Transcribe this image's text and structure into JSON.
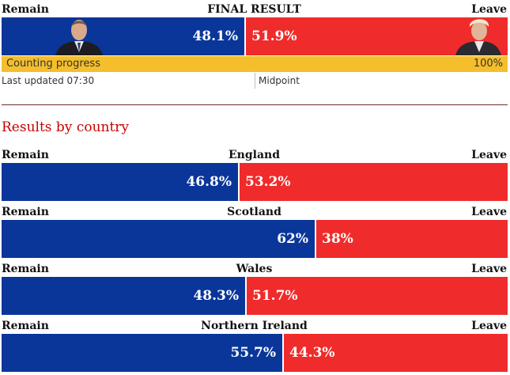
{
  "colors": {
    "remain": "#0a3699",
    "leave": "#f02b2b",
    "progress": "#f5be2c",
    "divider": "#6d2e2e",
    "section_title": "#c70000"
  },
  "final": {
    "title": "FINAL RESULT",
    "remain_label": "Remain",
    "leave_label": "Leave",
    "remain_pct": 48.1,
    "leave_pct": 51.9,
    "remain_text": "48.1%",
    "leave_text": "51.9%",
    "remain_icon": "remain-campaigner-portrait",
    "leave_icon": "leave-campaigner-portrait"
  },
  "progress": {
    "label": "Counting progress",
    "max_label": "100%",
    "value_pct": 100
  },
  "updated": "Last updated 07:30",
  "midpoint": "Midpoint",
  "section_title": "Results by country",
  "chart_data": {
    "type": "bar",
    "orientation": "horizontal",
    "stacked": true,
    "title": "Results by country",
    "categories": [
      "England",
      "Scotland",
      "Wales",
      "Northern Ireland"
    ],
    "series": [
      {
        "name": "Remain",
        "values": [
          46.8,
          62,
          48.3,
          55.7
        ],
        "labels": [
          "46.8%",
          "62%",
          "48.3%",
          "55.7%"
        ]
      },
      {
        "name": "Leave",
        "values": [
          53.2,
          38,
          51.7,
          44.3
        ],
        "labels": [
          "53.2%",
          "38%",
          "51.7%",
          "44.3%"
        ]
      }
    ],
    "xlim": [
      0,
      100
    ]
  }
}
